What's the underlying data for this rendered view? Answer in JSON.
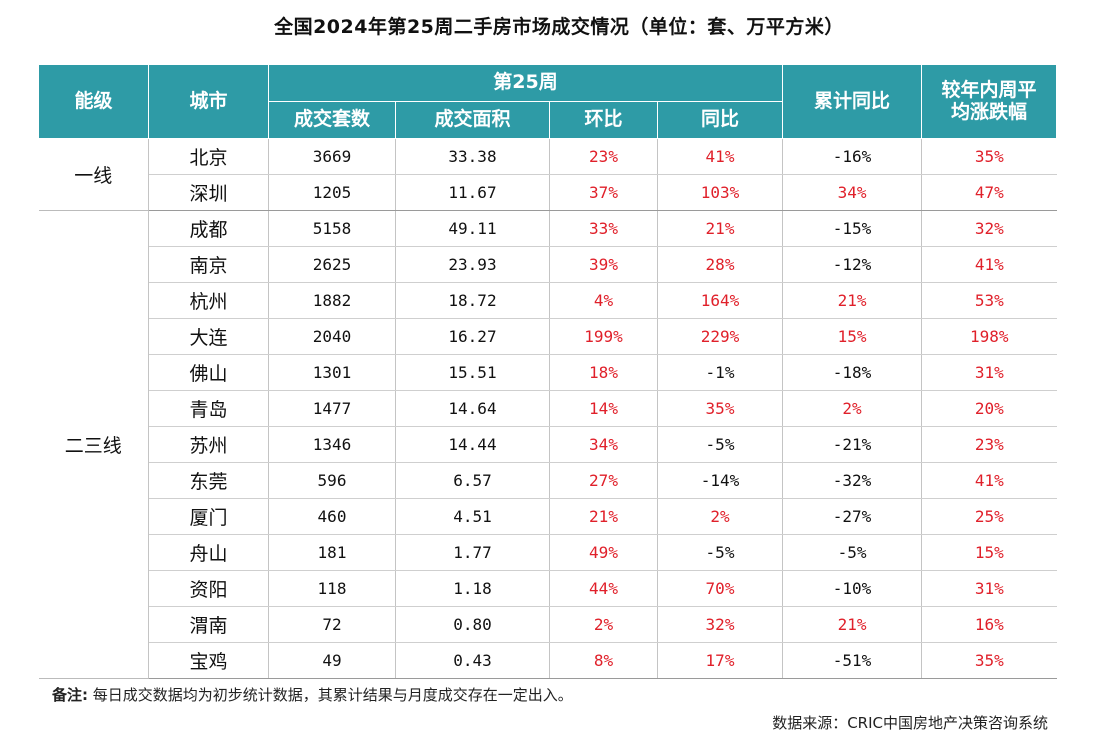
{
  "title": "全国2024年第25周二手房市场成交情况（单位：套、万平方米）",
  "headers": {
    "tier": "能级",
    "city": "城市",
    "week": "第25周",
    "units": "成交套数",
    "area": "成交面积",
    "mom": "环比",
    "yoy": "同比",
    "cum_yoy": "累计同比",
    "avg_change_line1": "较年内周平",
    "avg_change_line2": "均涨跌幅"
  },
  "groups": [
    {
      "tier": "一线",
      "rows": [
        {
          "city": "北京",
          "units": "3669",
          "area": "33.38",
          "mom": "23%",
          "yoy": "41%",
          "cum": "-16%",
          "avg": "35%"
        },
        {
          "city": "深圳",
          "units": "1205",
          "area": "11.67",
          "mom": "37%",
          "yoy": "103%",
          "cum": "34%",
          "avg": "47%"
        }
      ]
    },
    {
      "tier": "二三线",
      "rows": [
        {
          "city": "成都",
          "units": "5158",
          "area": "49.11",
          "mom": "33%",
          "yoy": "21%",
          "cum": "-15%",
          "avg": "32%"
        },
        {
          "city": "南京",
          "units": "2625",
          "area": "23.93",
          "mom": "39%",
          "yoy": "28%",
          "cum": "-12%",
          "avg": "41%"
        },
        {
          "city": "杭州",
          "units": "1882",
          "area": "18.72",
          "mom": "4%",
          "yoy": "164%",
          "cum": "21%",
          "avg": "53%"
        },
        {
          "city": "大连",
          "units": "2040",
          "area": "16.27",
          "mom": "199%",
          "yoy": "229%",
          "cum": "15%",
          "avg": "198%"
        },
        {
          "city": "佛山",
          "units": "1301",
          "area": "15.51",
          "mom": "18%",
          "yoy": "-1%",
          "cum": "-18%",
          "avg": "31%"
        },
        {
          "city": "青岛",
          "units": "1477",
          "area": "14.64",
          "mom": "14%",
          "yoy": "35%",
          "cum": "2%",
          "avg": "20%"
        },
        {
          "city": "苏州",
          "units": "1346",
          "area": "14.44",
          "mom": "34%",
          "yoy": "-5%",
          "cum": "-21%",
          "avg": "23%"
        },
        {
          "city": "东莞",
          "units": "596",
          "area": "6.57",
          "mom": "27%",
          "yoy": "-14%",
          "cum": "-32%",
          "avg": "41%"
        },
        {
          "city": "厦门",
          "units": "460",
          "area": "4.51",
          "mom": "21%",
          "yoy": "2%",
          "cum": "-27%",
          "avg": "25%"
        },
        {
          "city": "舟山",
          "units": "181",
          "area": "1.77",
          "mom": "49%",
          "yoy": "-5%",
          "cum": "-5%",
          "avg": "15%"
        },
        {
          "city": "资阳",
          "units": "118",
          "area": "1.18",
          "mom": "44%",
          "yoy": "70%",
          "cum": "-10%",
          "avg": "31%"
        },
        {
          "city": "渭南",
          "units": "72",
          "area": "0.80",
          "mom": "2%",
          "yoy": "32%",
          "cum": "21%",
          "avg": "16%"
        },
        {
          "city": "宝鸡",
          "units": "49",
          "area": "0.43",
          "mom": "8%",
          "yoy": "17%",
          "cum": "-51%",
          "avg": "35%"
        }
      ]
    }
  ],
  "note_label": "备注:",
  "note_text": " 每日成交数据均为初步统计数据，其累计结果与月度成交存在一定出入。",
  "source": "数据来源：CRIC中国房地产决策咨询系统",
  "colors": {
    "header_bg": "#2e9ba6",
    "positive": "#e0202a",
    "negative": "#111111"
  }
}
